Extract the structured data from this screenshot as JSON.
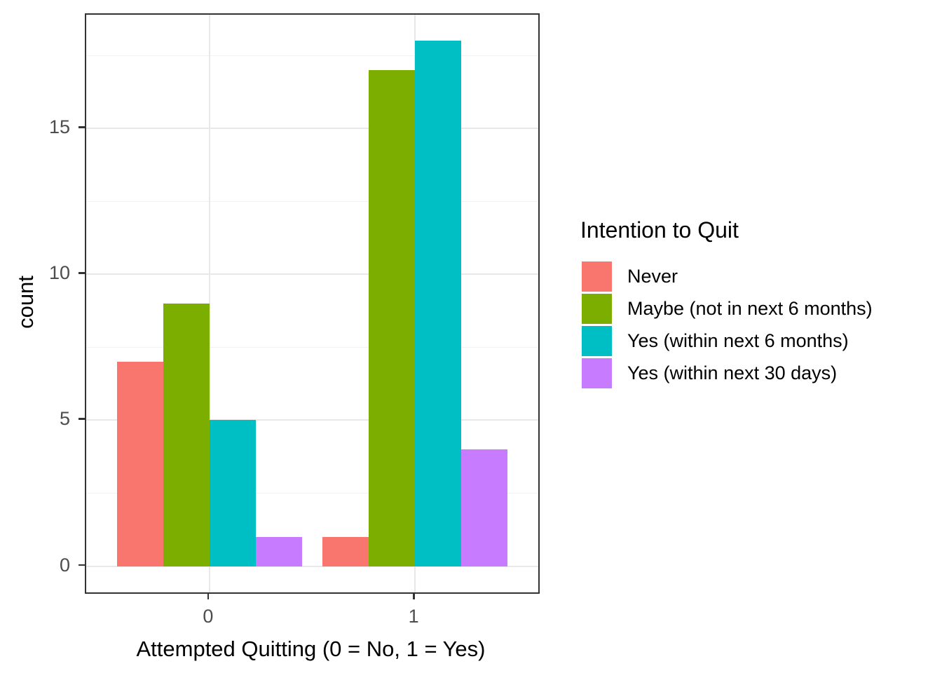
{
  "chart_data": {
    "type": "bar",
    "title": "",
    "xlabel": "Attempted Quitting (0 = No, 1 = Yes)",
    "ylabel": "count",
    "categories": [
      "0",
      "1"
    ],
    "series": [
      {
        "name": "Never",
        "color": "#F8766D",
        "values": [
          7,
          1
        ]
      },
      {
        "name": "Maybe (not in next 6 months)",
        "color": "#7CAE00",
        "values": [
          9,
          17
        ]
      },
      {
        "name": "Yes (within next 6 months)",
        "color": "#00BFC4",
        "values": [
          5,
          18
        ]
      },
      {
        "name": "Yes (within next 30 days)",
        "color": "#C77CFF",
        "values": [
          1,
          4
        ]
      }
    ],
    "legend_title": "Intention to Quit",
    "legend_position": "right",
    "y_ticks": [
      0,
      5,
      10,
      15
    ],
    "y_minor_ticks": [
      2.5,
      7.5,
      12.5,
      17.5
    ],
    "ylim": [
      -0.9,
      18.9
    ],
    "grid": true,
    "bar_layout": "dodge"
  },
  "colors": {
    "panel_border": "#333333",
    "grid_major": "#E8E8E8",
    "grid_minor": "#F2F2F2",
    "tick_mark": "#333333",
    "tick_label": "#4D4D4D",
    "axis_title": "#000000",
    "background": "#FFFFFF"
  }
}
